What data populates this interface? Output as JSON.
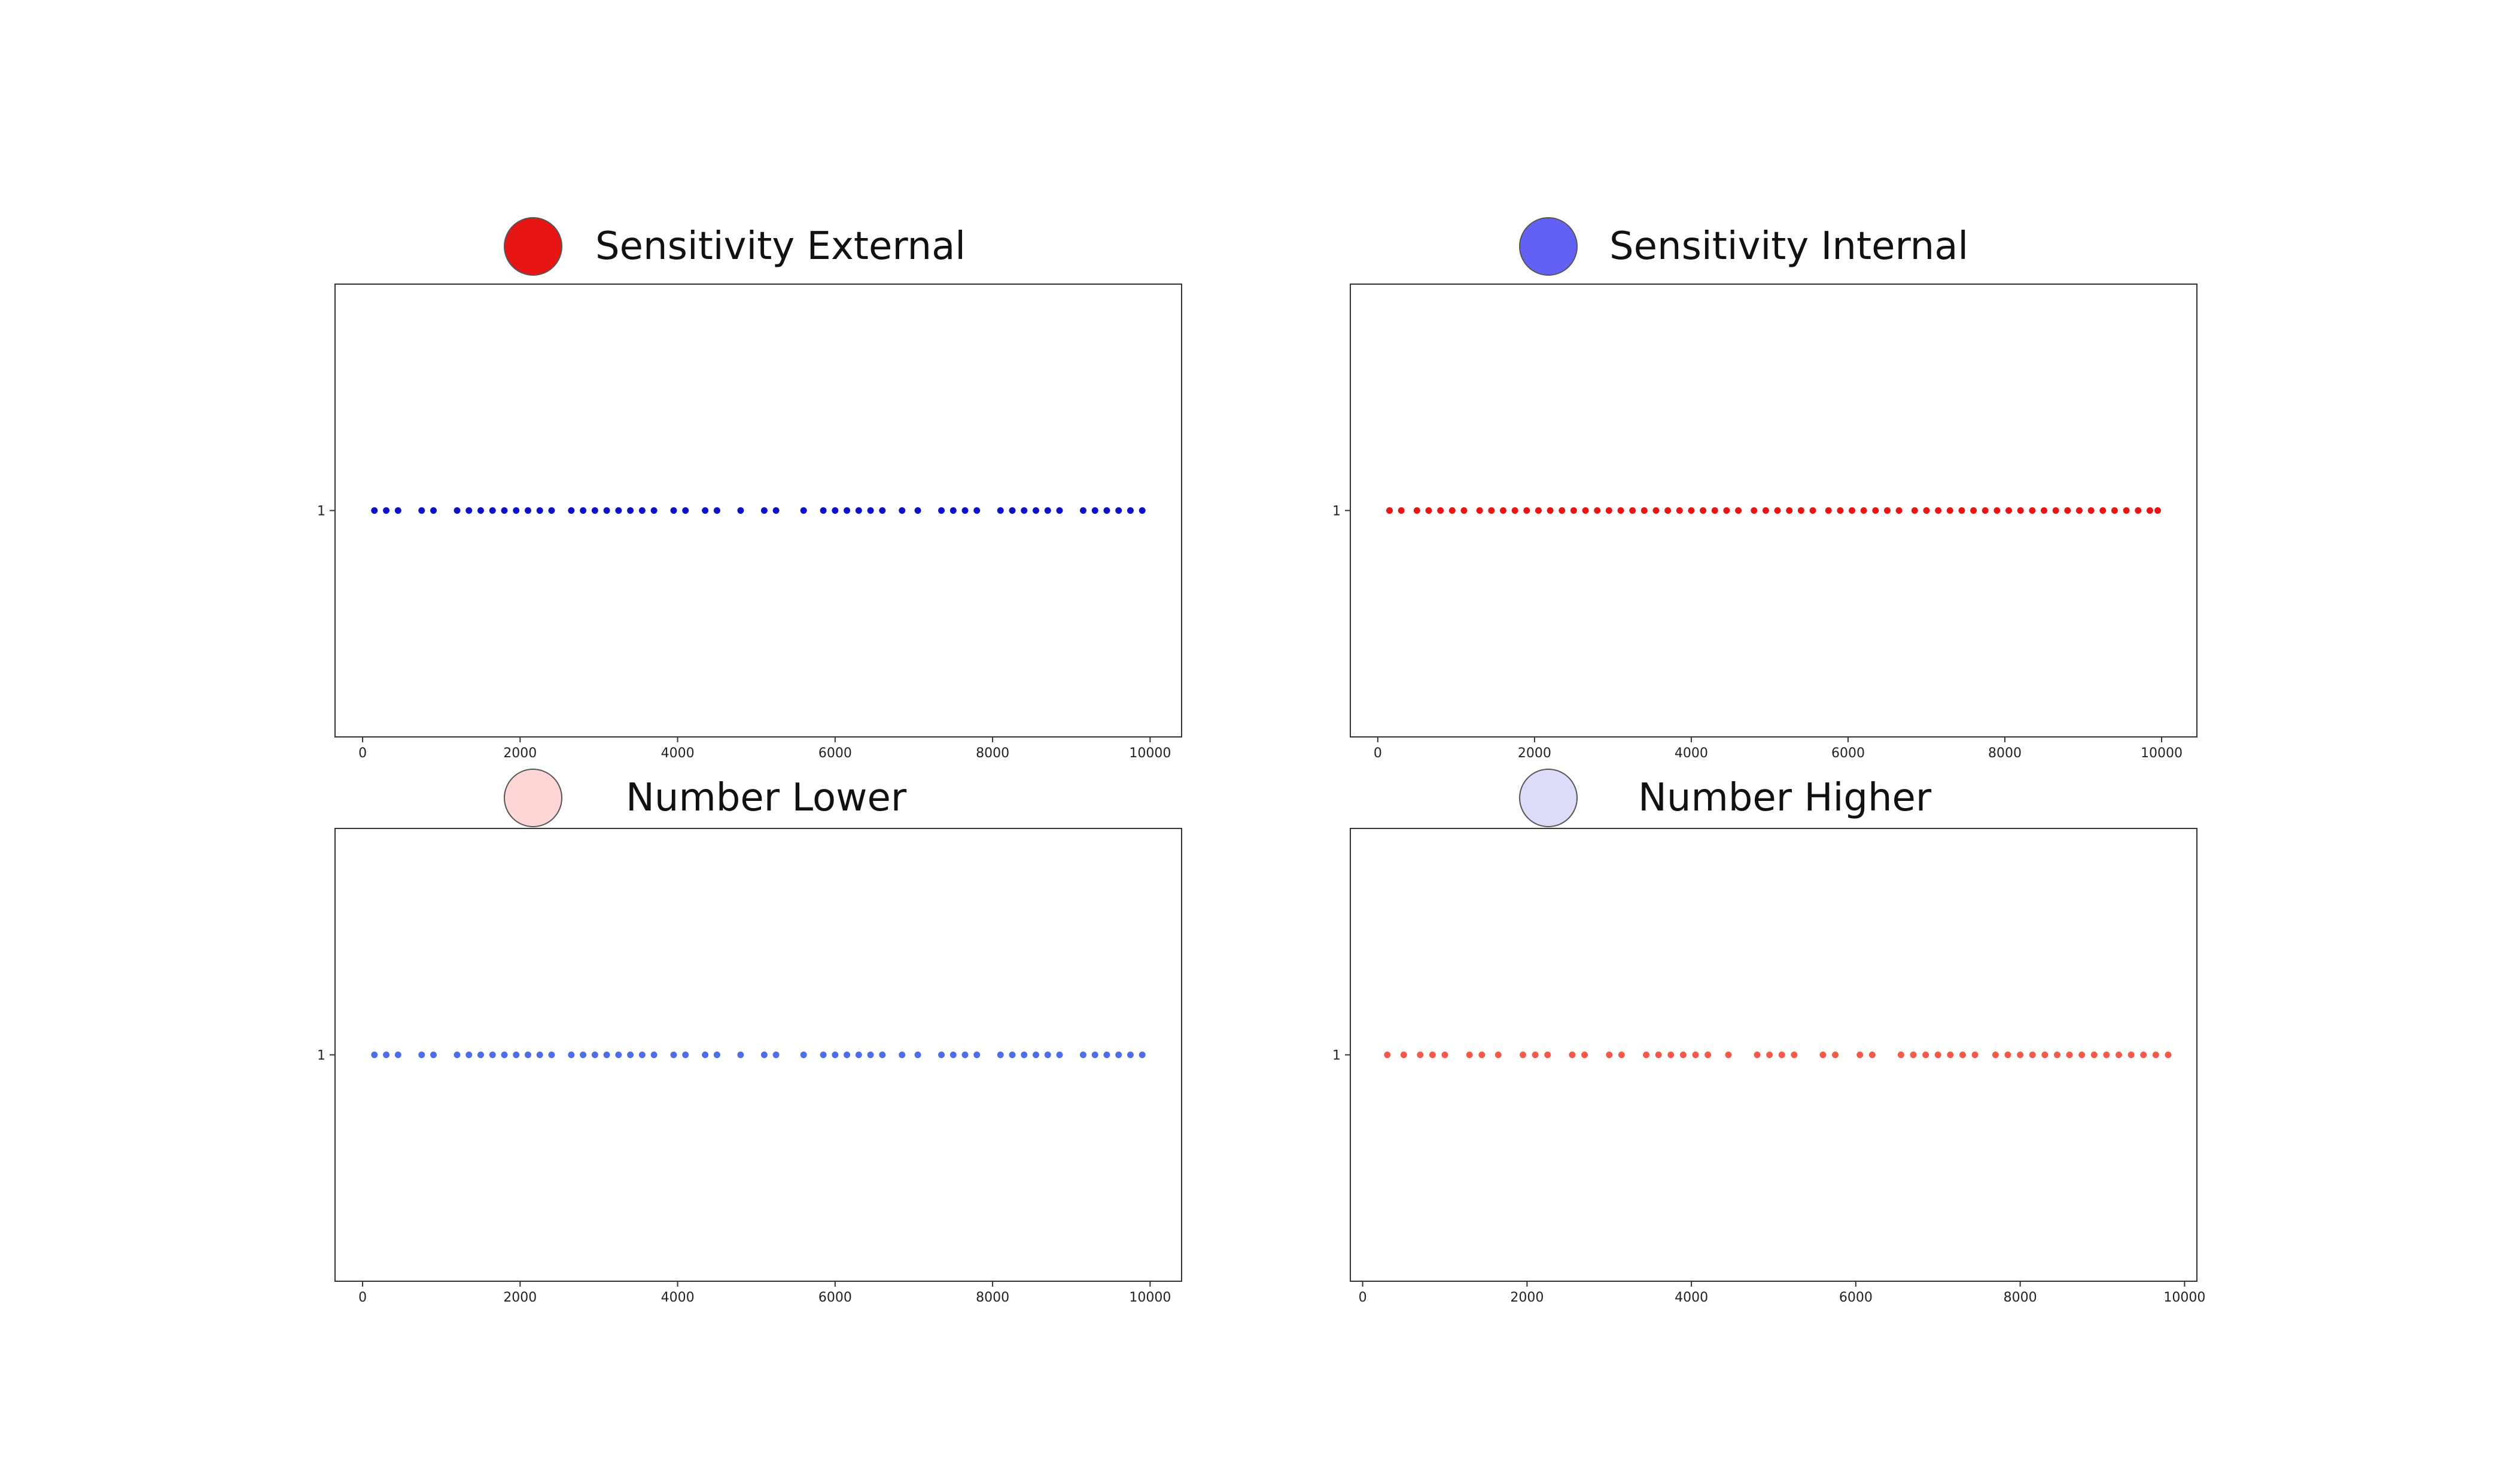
{
  "chart_data": [
    {
      "type": "scatter",
      "title": "Sensitivity External",
      "legend_color": "#e81515",
      "marker_color": "#1010c8",
      "xlim": [
        -350,
        10400
      ],
      "ylim": [
        0.5,
        1.5
      ],
      "xticks": [
        "0",
        "2000",
        "4000",
        "6000",
        "8000",
        "10000"
      ],
      "yticks": [
        "1"
      ],
      "x": [
        150,
        300,
        450,
        750,
        900,
        1200,
        1350,
        1500,
        1650,
        1800,
        1950,
        2100,
        2250,
        2400,
        2650,
        2800,
        2950,
        3100,
        3250,
        3400,
        3550,
        3700,
        3950,
        4100,
        4350,
        4500,
        4800,
        5100,
        5250,
        5600,
        5850,
        6000,
        6150,
        6300,
        6450,
        6600,
        6850,
        7050,
        7350,
        7500,
        7650,
        7800,
        8100,
        8250,
        8400,
        8550,
        8700,
        8850,
        9150,
        9300,
        9450,
        9600,
        9750,
        9900
      ],
      "y_value": 1
    },
    {
      "type": "scatter",
      "title": "Sensitivity Internal",
      "legend_color": "#6161f5",
      "marker_color": "#e81515",
      "xlim": [
        -350,
        10450
      ],
      "ylim": [
        0.5,
        1.5
      ],
      "xticks": [
        "0",
        "2000",
        "4000",
        "6000",
        "8000",
        "10000"
      ],
      "yticks": [
        "1"
      ],
      "x": [
        150,
        300,
        500,
        650,
        800,
        950,
        1100,
        1300,
        1450,
        1600,
        1750,
        1900,
        2050,
        2200,
        2350,
        2500,
        2650,
        2800,
        2950,
        3100,
        3250,
        3400,
        3550,
        3700,
        3850,
        4000,
        4150,
        4300,
        4450,
        4600,
        4800,
        4950,
        5100,
        5250,
        5400,
        5550,
        5750,
        5900,
        6050,
        6200,
        6350,
        6500,
        6650,
        6850,
        7000,
        7150,
        7300,
        7450,
        7600,
        7750,
        7900,
        8050,
        8200,
        8350,
        8500,
        8650,
        8800,
        8950,
        9100,
        9250,
        9400,
        9550,
        9700,
        9850,
        9950
      ],
      "y_value": 1
    },
    {
      "type": "scatter",
      "title": "Number Lower",
      "legend_color": "#ffd6d6",
      "marker_color": "#4c6ee8",
      "xlim": [
        -350,
        10400
      ],
      "ylim": [
        0.5,
        1.5
      ],
      "xticks": [
        "0",
        "2000",
        "4000",
        "6000",
        "8000",
        "10000"
      ],
      "yticks": [
        "1"
      ],
      "x": [
        150,
        300,
        450,
        750,
        900,
        1200,
        1350,
        1500,
        1650,
        1800,
        1950,
        2100,
        2250,
        2400,
        2650,
        2800,
        2950,
        3100,
        3250,
        3400,
        3550,
        3700,
        3950,
        4100,
        4350,
        4500,
        4800,
        5100,
        5250,
        5600,
        5850,
        6000,
        6150,
        6300,
        6450,
        6600,
        6850,
        7050,
        7350,
        7500,
        7650,
        7800,
        8100,
        8250,
        8400,
        8550,
        8700,
        8850,
        9150,
        9300,
        9450,
        9600,
        9750,
        9900
      ],
      "y_value": 1
    },
    {
      "type": "scatter",
      "title": "Number Higher",
      "legend_color": "#dcdcf8",
      "marker_color": "#f55a48",
      "xlim": [
        -150,
        10150
      ],
      "ylim": [
        0.5,
        1.5
      ],
      "xticks": [
        "0",
        "2000",
        "4000",
        "6000",
        "8000",
        "10000"
      ],
      "yticks": [
        "1"
      ],
      "x": [
        300,
        500,
        700,
        850,
        1000,
        1300,
        1450,
        1650,
        1950,
        2100,
        2250,
        2550,
        2700,
        3000,
        3150,
        3450,
        3600,
        3750,
        3900,
        4050,
        4200,
        4450,
        4800,
        4950,
        5100,
        5250,
        5600,
        5750,
        6050,
        6200,
        6550,
        6700,
        6850,
        7000,
        7150,
        7300,
        7450,
        7700,
        7850,
        8000,
        8150,
        8300,
        8450,
        8600,
        8750,
        8900,
        9050,
        9200,
        9350,
        9500,
        9650,
        9800
      ],
      "y_value": 1
    }
  ]
}
